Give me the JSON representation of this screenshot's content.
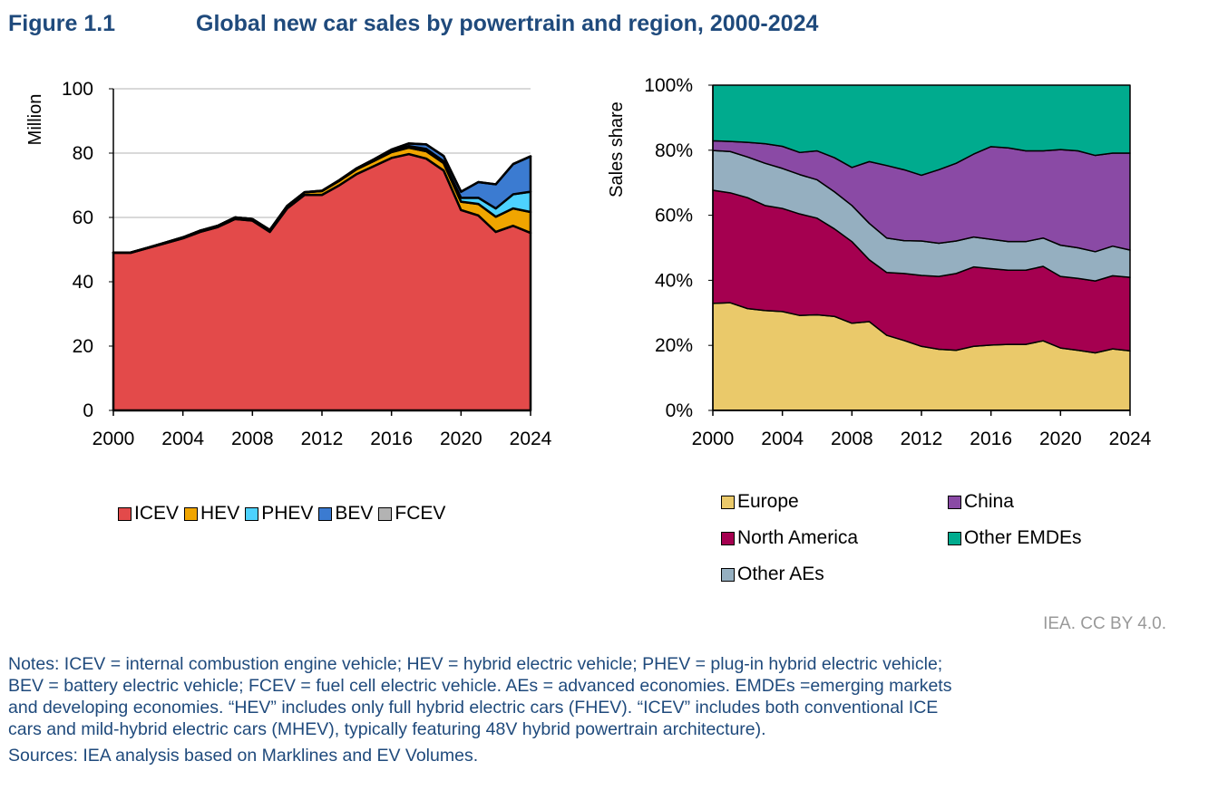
{
  "title": {
    "figure": "Figure 1.1",
    "text": "Global new car sales by powertrain and region, 2000-2024"
  },
  "chart_data": [
    {
      "type": "area",
      "stacked": true,
      "ylabel": "Million",
      "ylim": [
        0,
        100
      ],
      "yticks": [
        "0",
        "20",
        "40",
        "60",
        "80",
        "100"
      ],
      "xticks": [
        "2000",
        "2004",
        "2008",
        "2012",
        "2016",
        "2020",
        "2024"
      ],
      "grid": true,
      "legend_position": "bottom",
      "x": [
        2000,
        2001,
        2002,
        2003,
        2004,
        2005,
        2006,
        2007,
        2008,
        2009,
        2010,
        2011,
        2012,
        2013,
        2014,
        2015,
        2016,
        2017,
        2018,
        2019,
        2020,
        2021,
        2022,
        2023,
        2024
      ],
      "series": [
        {
          "name": "ICEV",
          "color": "#e34a4a",
          "values": [
            49,
            49,
            50.5,
            52,
            53.5,
            55.5,
            57,
            59.5,
            59,
            55.5,
            62.8,
            67,
            67,
            70,
            73.5,
            76,
            78.5,
            79.7,
            78.3,
            74.6,
            62.3,
            60.6,
            55.5,
            57.4,
            55.2
          ]
        },
        {
          "name": "HEV",
          "color": "#f0a500",
          "values": [
            0.1,
            0.1,
            0.1,
            0.2,
            0.3,
            0.4,
            0.4,
            0.5,
            0.5,
            0.6,
            0.8,
            0.8,
            1.2,
            1.4,
            1.5,
            1.6,
            1.8,
            2.0,
            2.3,
            2.3,
            2.6,
            3.6,
            4.7,
            5.4,
            6.5
          ]
        },
        {
          "name": "PHEV",
          "color": "#4dd2ff",
          "values": [
            0,
            0,
            0,
            0,
            0,
            0,
            0,
            0,
            0,
            0,
            0,
            0,
            0.05,
            0.1,
            0.1,
            0.2,
            0.3,
            0.5,
            0.7,
            0.6,
            1.2,
            1.9,
            2.6,
            4.4,
            6.3
          ]
        },
        {
          "name": "BEV",
          "color": "#3b7bd1",
          "values": [
            0,
            0,
            0,
            0,
            0,
            0,
            0,
            0,
            0,
            0,
            0,
            0.05,
            0.05,
            0.1,
            0.2,
            0.3,
            0.5,
            0.8,
            1.4,
            1.6,
            1.9,
            4.9,
            7.5,
            9.4,
            11
          ]
        },
        {
          "name": "FCEV",
          "color": "#b3b3b3",
          "values": [
            0,
            0,
            0,
            0,
            0,
            0,
            0,
            0,
            0,
            0,
            0,
            0,
            0,
            0,
            0,
            0,
            0,
            0,
            0,
            0,
            0,
            0,
            0,
            0,
            0
          ]
        }
      ]
    },
    {
      "type": "area",
      "stacked": true,
      "ylabel": "Sales share",
      "ylim": [
        0,
        100
      ],
      "yticks": [
        "0%",
        "20%",
        "40%",
        "60%",
        "80%",
        "100%"
      ],
      "xticks": [
        "2000",
        "2004",
        "2008",
        "2012",
        "2016",
        "2020",
        "2024"
      ],
      "grid": false,
      "legend_position": "bottom",
      "x": [
        2000,
        2001,
        2002,
        2003,
        2004,
        2005,
        2006,
        2007,
        2008,
        2009,
        2010,
        2011,
        2012,
        2013,
        2014,
        2015,
        2016,
        2017,
        2018,
        2019,
        2020,
        2021,
        2022,
        2023,
        2024
      ],
      "series": [
        {
          "name": "Europe",
          "color": "#eac96a",
          "values": [
            32.9,
            33.1,
            31.3,
            30.7,
            30.4,
            29.2,
            29.4,
            28.9,
            26.8,
            27.3,
            23.1,
            21.5,
            19.7,
            18.8,
            18.5,
            19.7,
            20.1,
            20.3,
            20.3,
            21.4,
            19.2,
            18.5,
            17.7,
            18.9,
            18.3
          ]
        },
        {
          "name": "North America",
          "color": "#a50050",
          "values": [
            34.8,
            33.8,
            34.1,
            32.3,
            31.7,
            31.2,
            29.7,
            26.9,
            25.1,
            19.0,
            19.3,
            20.6,
            21.8,
            22.4,
            23.6,
            24.4,
            23.5,
            22.8,
            22.8,
            22.9,
            22.0,
            22.1,
            22.1,
            22.5,
            22.6
          ]
        },
        {
          "name": "Other AEs",
          "color": "#95afc0",
          "values": [
            12.2,
            12.7,
            12.5,
            13.0,
            12.3,
            12.1,
            11.8,
            11.4,
            11.1,
            11.2,
            10.6,
            10.1,
            10.6,
            10.2,
            10.0,
            9.2,
            9.0,
            8.8,
            8.8,
            8.7,
            9.6,
            9.4,
            9.0,
            9.1,
            8.4
          ]
        },
        {
          "name": "China",
          "color": "#8a4aa5",
          "values": [
            3.0,
            3.1,
            4.5,
            6.0,
            6.8,
            6.8,
            8.9,
            10.5,
            11.7,
            19.0,
            22.3,
            21.8,
            20.2,
            22.6,
            23.9,
            25.5,
            28.5,
            28.8,
            27.9,
            26.8,
            29.4,
            29.8,
            29.6,
            28.6,
            29.8
          ]
        },
        {
          "name": "Other EMDEs",
          "color": "#00ab8e",
          "values": [
            17.1,
            17.3,
            17.6,
            18.0,
            18.8,
            20.7,
            20.2,
            22.3,
            25.3,
            23.5,
            24.7,
            26.0,
            27.7,
            26.0,
            24.0,
            21.2,
            18.9,
            19.3,
            20.2,
            20.2,
            19.8,
            20.2,
            21.6,
            20.9,
            20.9
          ]
        }
      ]
    }
  ],
  "credit": "IEA. CC BY 4.0.",
  "notes": [
    "Notes: ICEV = internal combustion engine vehicle; HEV = hybrid electric vehicle; PHEV = plug-in hybrid electric vehicle;",
    "BEV = battery electric vehicle; FCEV = fuel cell electric vehicle. AEs = advanced economies. EMDEs =emerging markets",
    "and developing economies. “HEV” includes only full hybrid electric cars (FHEV). “ICEV” includes both conventional ICE",
    "cars and mild-hybrid electric cars (MHEV), typically featuring 48V hybrid powertrain architecture)."
  ],
  "sources": "Sources: IEA analysis based on Marklines and EV Volumes."
}
